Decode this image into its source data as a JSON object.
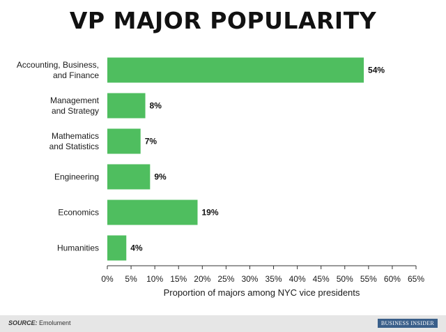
{
  "chart_data": {
    "type": "bar",
    "orientation": "horizontal",
    "title": "VP MAJOR POPULARITY",
    "categories": [
      [
        "Accounting, Business,",
        "and Finance"
      ],
      [
        "Management",
        "and Strategy"
      ],
      [
        "Mathematics",
        "and Statistics"
      ],
      [
        "Engineering"
      ],
      [
        "Economics"
      ],
      [
        "Humanities"
      ]
    ],
    "values": [
      54,
      8,
      7,
      9,
      19,
      4
    ],
    "value_labels": [
      "54%",
      "8%",
      "7%",
      "9%",
      "19%",
      "4%"
    ],
    "xlabel": "Proportion of majors among NYC vice presidents",
    "ylabel": "",
    "xlim": [
      0,
      65
    ],
    "ticks": [
      0,
      5,
      10,
      15,
      20,
      25,
      30,
      35,
      40,
      45,
      50,
      55,
      60,
      65
    ],
    "tick_labels": [
      "0%",
      "5%",
      "10%",
      "15%",
      "20%",
      "25%",
      "30%",
      "35%",
      "40%",
      "45%",
      "50%",
      "55%",
      "60%",
      "65%"
    ],
    "grid": false,
    "bar_color": "#4fbe5f",
    "axis_color": "#333333"
  },
  "footer": {
    "source_label": "SOURCE:",
    "source_text": " Emolument",
    "brand": "BUSINESS INSIDER"
  }
}
